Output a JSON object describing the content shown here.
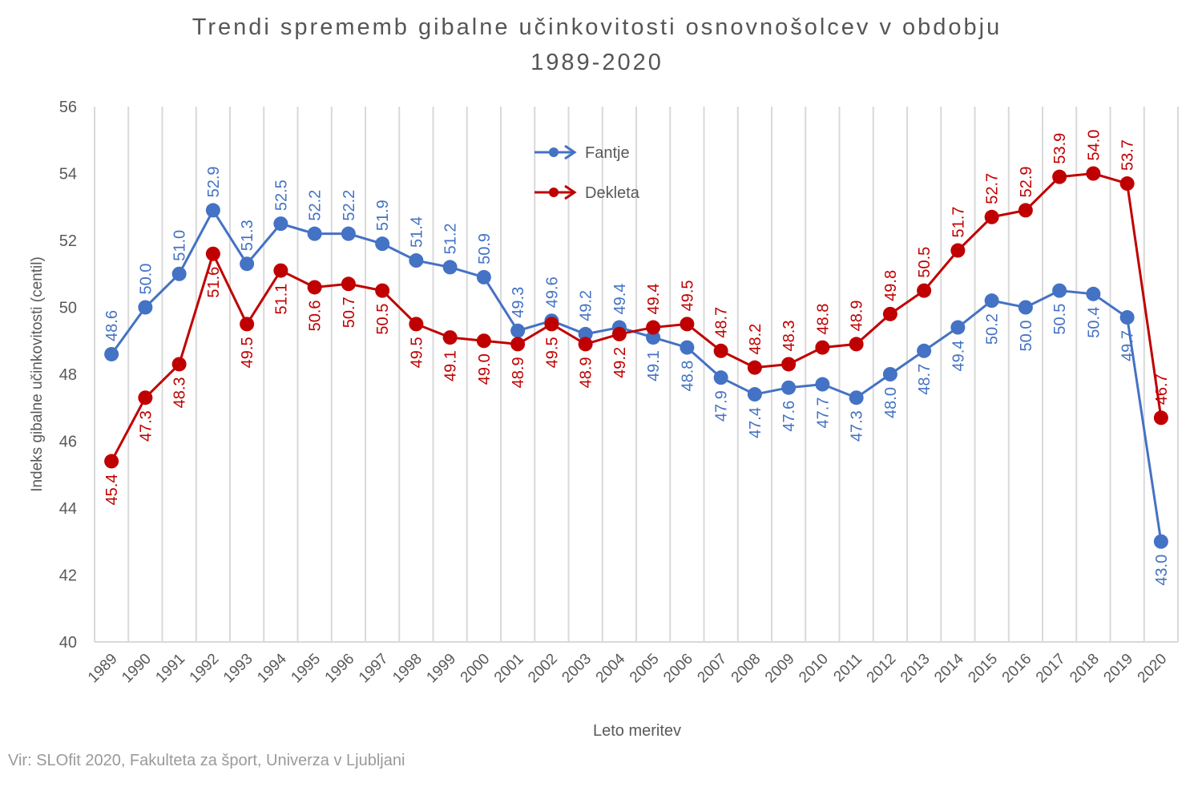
{
  "chart_data": {
    "type": "line",
    "title_line1": "Trendi sprememb gibalne učinkovitosti osnovnošolcev v obdobju",
    "title_line2": "1989-2020",
    "xlabel": "Leto meritev",
    "ylabel": "Indeks gibalne učinkovitosti (centil)",
    "ylim": [
      40,
      56
    ],
    "yticks": [
      40,
      42,
      44,
      46,
      48,
      50,
      52,
      54,
      56
    ],
    "grid": "vertical",
    "legend_position": "top-center",
    "categories": [
      "1989",
      "1990",
      "1991",
      "1992",
      "1993",
      "1994",
      "1995",
      "1996",
      "1997",
      "1998",
      "1999",
      "2000",
      "2001",
      "2002",
      "2003",
      "2004",
      "2005",
      "2006",
      "2007",
      "2008",
      "2009",
      "2010",
      "2011",
      "2012",
      "2013",
      "2014",
      "2015",
      "2016",
      "2017",
      "2018",
      "2019",
      "2020"
    ],
    "series": [
      {
        "name": "Fantje",
        "color": "#4472c4",
        "values": [
          48.6,
          50.0,
          51.0,
          52.9,
          51.3,
          52.5,
          52.2,
          52.2,
          51.9,
          51.4,
          51.2,
          50.9,
          49.3,
          49.6,
          49.2,
          49.4,
          49.1,
          48.8,
          47.9,
          47.4,
          47.6,
          47.7,
          47.3,
          48.0,
          48.7,
          49.4,
          50.2,
          50.0,
          50.5,
          50.4,
          49.7,
          43.0
        ]
      },
      {
        "name": "Dekleta",
        "color": "#c00000",
        "values": [
          45.4,
          47.3,
          48.3,
          51.6,
          49.5,
          51.1,
          50.6,
          50.7,
          50.5,
          49.5,
          49.1,
          49.0,
          48.9,
          49.5,
          48.9,
          49.2,
          49.4,
          49.5,
          48.7,
          48.2,
          48.3,
          48.8,
          48.9,
          49.8,
          50.5,
          51.7,
          52.7,
          52.9,
          53.9,
          54.0,
          53.7,
          46.7
        ]
      }
    ]
  },
  "source": "Vir: SLOfit 2020, Fakulteta za šport, Univerza v Ljubljani"
}
